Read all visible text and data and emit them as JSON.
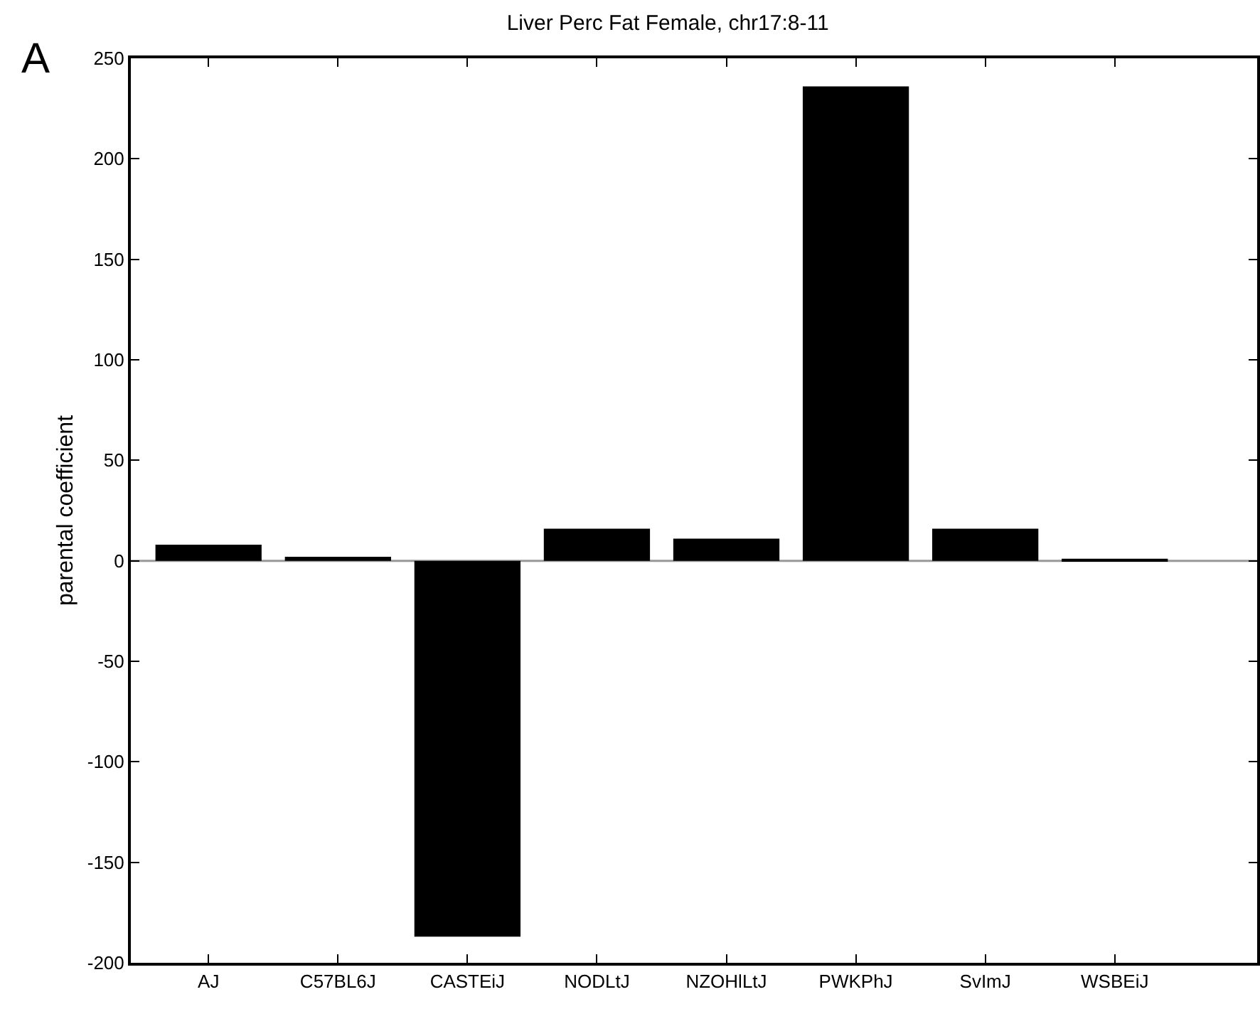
{
  "chart_data": {
    "type": "bar",
    "title": "Liver Perc Fat Female, chr17:8-11",
    "ylabel": "parental coefficient",
    "categories": [
      "AJ",
      "C57BL6J",
      "CASTEiJ",
      "NODLtJ",
      "NZOHlLtJ",
      "PWKPhJ",
      "SvImJ",
      "WSBEiJ"
    ],
    "values": [
      8,
      2,
      -187,
      16,
      11,
      236,
      16,
      1
    ],
    "color": "#000000",
    "ylim": [
      -200,
      250
    ],
    "yticks": [
      -200,
      -150,
      -100,
      -50,
      0,
      50,
      100,
      150,
      200,
      250
    ],
    "ref_lines": [
      {
        "axis": "y",
        "value": 0,
        "color": "#999999"
      }
    ],
    "annotations": [
      "A"
    ],
    "grid": false,
    "legend": false
  }
}
